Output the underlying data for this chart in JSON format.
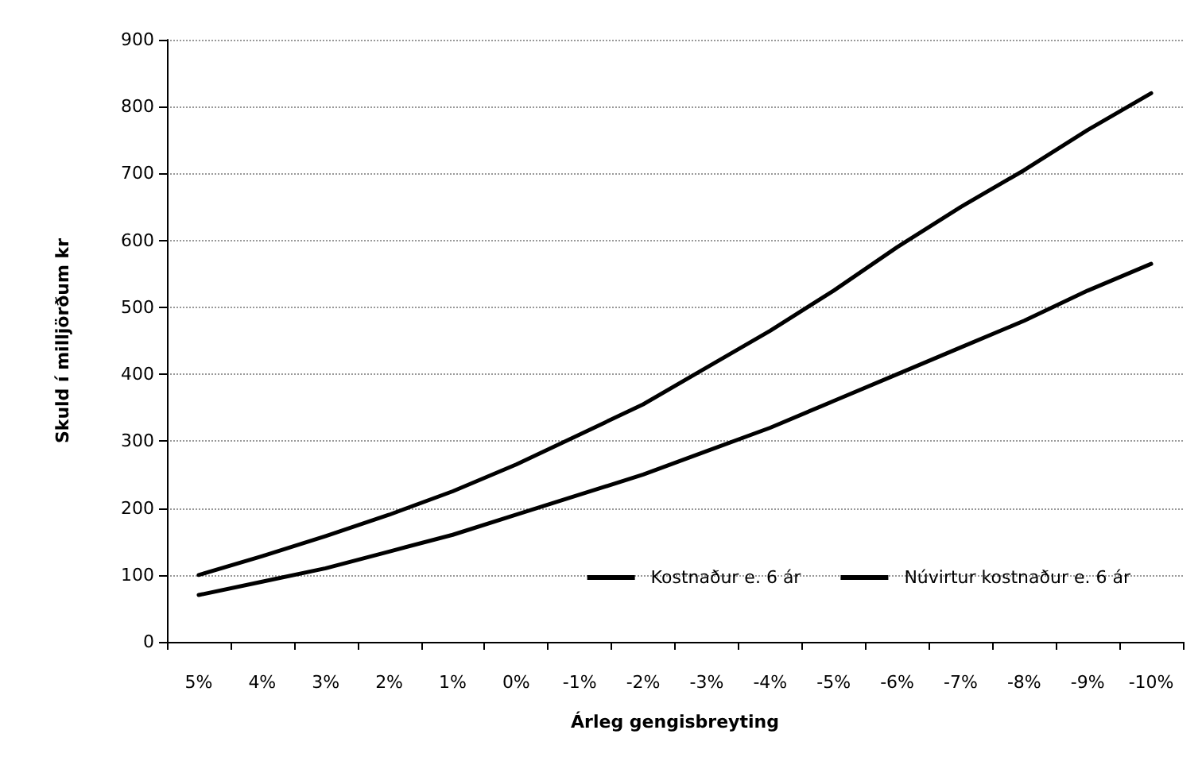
{
  "chart_data": {
    "type": "line",
    "xlabel": "Árleg gengisbreyting",
    "ylabel": "Skuld í milljörðum kr",
    "categories": [
      "5%",
      "4%",
      "3%",
      "2%",
      "1%",
      "0%",
      "-1%",
      "-2%",
      "-3%",
      "-4%",
      "-5%",
      "-6%",
      "-7%",
      "-8%",
      "-9%",
      "-10%"
    ],
    "series": [
      {
        "name": "Kostnaður e. 6 ár",
        "color": "#000000",
        "values": [
          100,
          128,
          158,
          190,
          225,
          265,
          310,
          355,
          410,
          465,
          525,
          590,
          650,
          705,
          765,
          820
        ]
      },
      {
        "name": "Núvirtur kostnaður e. 6 ár",
        "color": "#000000",
        "values": [
          70,
          90,
          110,
          135,
          160,
          190,
          220,
          250,
          285,
          320,
          360,
          400,
          440,
          480,
          525,
          565
        ]
      }
    ],
    "ylim": [
      0,
      900
    ],
    "yticks": [
      0,
      100,
      200,
      300,
      400,
      500,
      600,
      700,
      800,
      900
    ],
    "grid": "y",
    "legend": "bottom right",
    "marker": "none",
    "line_style": "solid"
  }
}
